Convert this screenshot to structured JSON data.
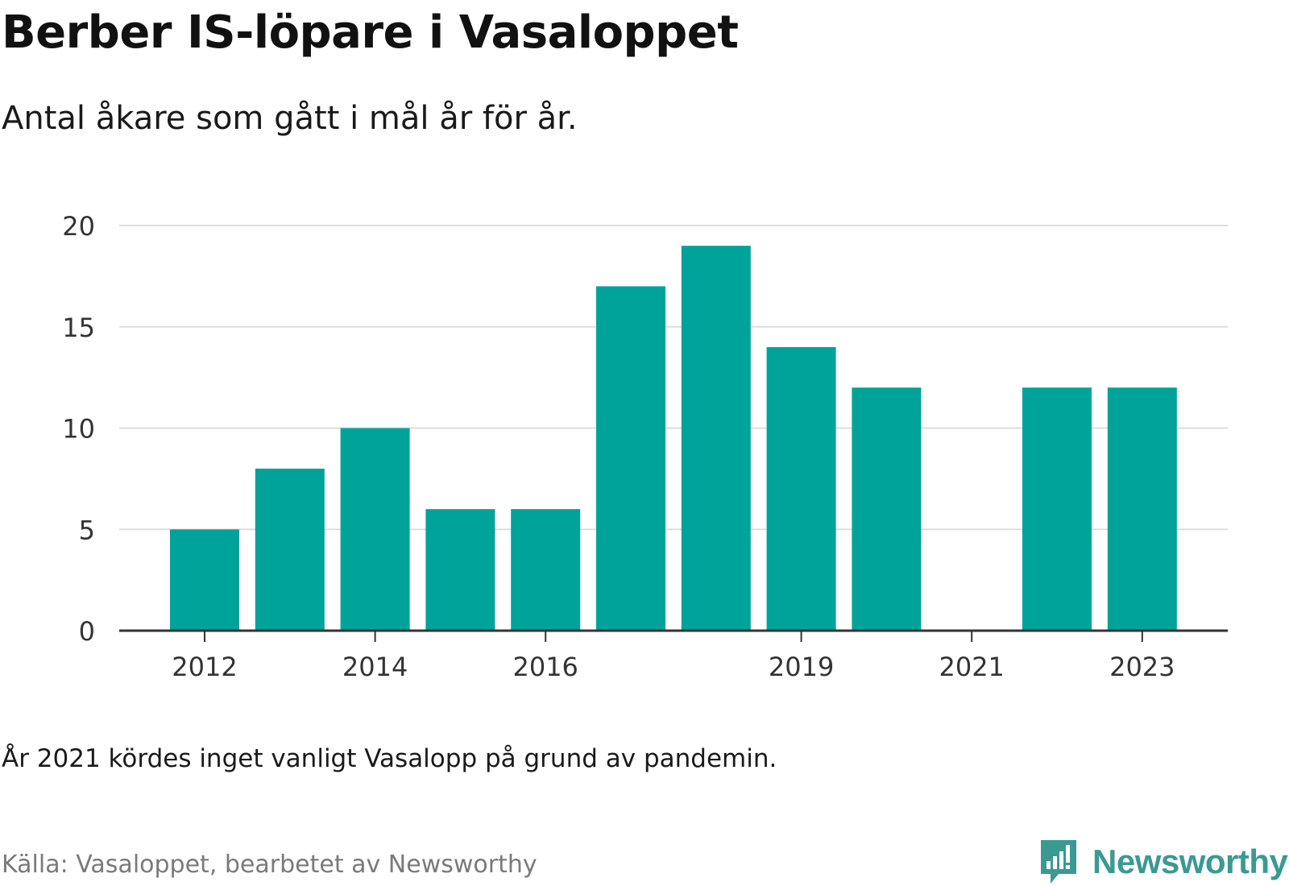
{
  "title": "Berber IS-löpare i Vasaloppet",
  "subtitle": "Antal åkare som gått i mål år för år.",
  "note": "År 2021 kördes inget vanligt Vasalopp på grund av pandemin.",
  "source": "Källa: Vasaloppet, bearbetet av Newsworthy",
  "brand": {
    "name": "Newsworthy",
    "icon": "newsworthy-logo-icon",
    "color": "#3a9a92"
  },
  "colors": {
    "bar": "#00a39a",
    "grid": "#dddddd",
    "axis": "#333333",
    "tick_text": "#333333"
  },
  "chart_data": {
    "type": "bar",
    "title": "Berber IS-löpare i Vasaloppet",
    "subtitle": "Antal åkare som gått i mål år för år.",
    "xlabel": "",
    "ylabel": "",
    "categories": [
      "2012",
      "2013",
      "2014",
      "2015",
      "2016",
      "2017",
      "2018",
      "2019",
      "2020",
      "2021",
      "2022",
      "2023"
    ],
    "values": [
      5,
      8,
      10,
      6,
      6,
      17,
      19,
      14,
      12,
      0,
      12,
      12
    ],
    "x_tick_labels": [
      "2012",
      "2014",
      "2016",
      "2019",
      "2021",
      "2023"
    ],
    "y_ticks": [
      0,
      5,
      10,
      15,
      20
    ],
    "ylim": [
      0,
      20
    ],
    "grid": true,
    "legend": "none"
  }
}
